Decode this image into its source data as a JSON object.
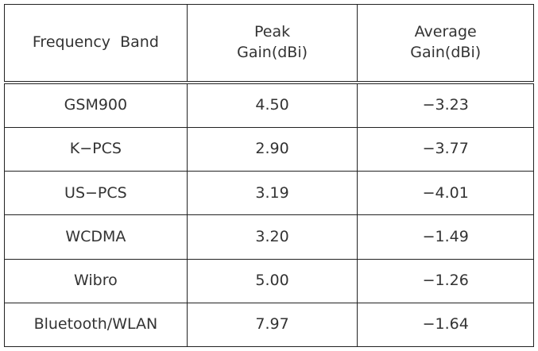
{
  "table": {
    "header": [
      [
        "Frequency  Band"
      ],
      [
        "Peak",
        "Gain(dBi)"
      ],
      [
        "Average",
        "Gain(dBi)"
      ]
    ],
    "rows": [
      [
        "GSM900",
        "4.50",
        "−3.23"
      ],
      [
        "K−PCS",
        "2.90",
        "−3.77"
      ],
      [
        "US−PCS",
        "3.19",
        "−4.01"
      ],
      [
        "WCDMA",
        "3.20",
        "−1.49"
      ],
      [
        "Wibro",
        "5.00",
        "−1.26"
      ],
      [
        "Bluetooth/WLAN",
        "7.97",
        "−1.64"
      ]
    ]
  }
}
